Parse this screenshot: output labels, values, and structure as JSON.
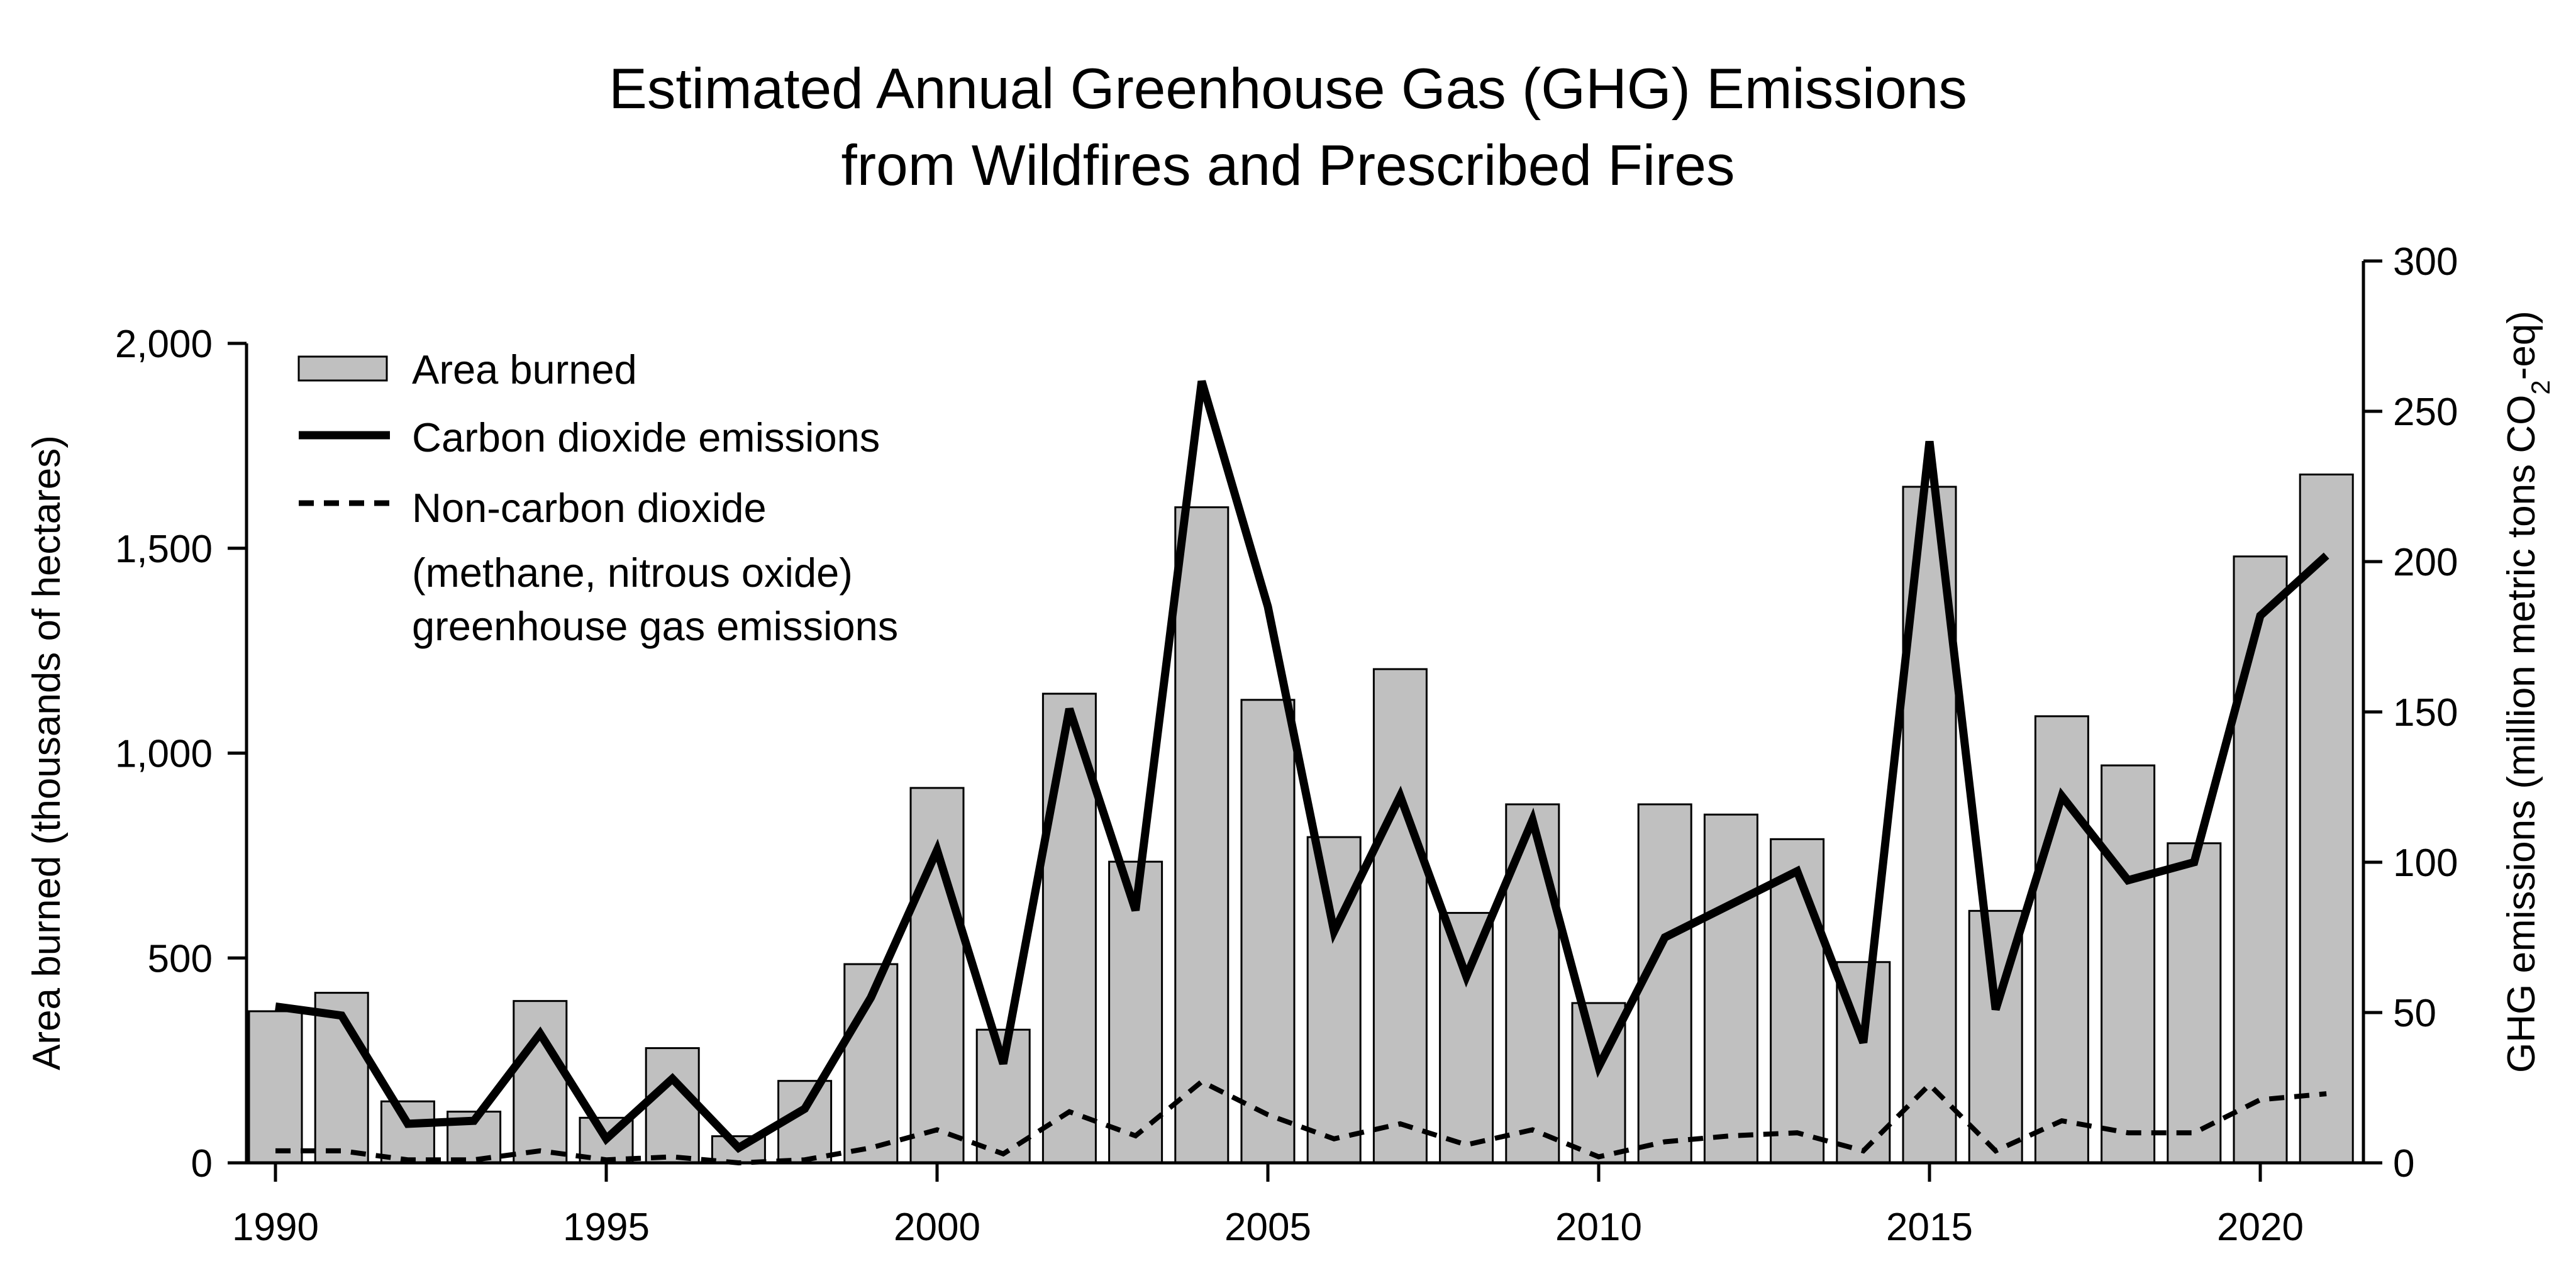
{
  "chart_data": {
    "type": "bar",
    "title": [
      "Estimated Annual Greenhouse Gas (GHG) Emissions",
      "from Wildfires and Prescribed Fires"
    ],
    "x": [
      1990,
      1991,
      1992,
      1993,
      1994,
      1995,
      1996,
      1997,
      1998,
      1999,
      2000,
      2001,
      2002,
      2003,
      2004,
      2005,
      2006,
      2007,
      2008,
      2009,
      2010,
      2011,
      2012,
      2013,
      2014,
      2015,
      2016,
      2017,
      2018,
      2019,
      2020,
      2021
    ],
    "x_ticks": [
      "1990",
      "1995",
      "2000",
      "2005",
      "2010",
      "2015",
      "2020"
    ],
    "left_axis": {
      "label": "Area burned (thousands of hectares)",
      "range": [
        0,
        2000
      ],
      "ticks": [
        "0",
        "500",
        "1,000",
        "1,500",
        "2,000"
      ]
    },
    "right_axis": {
      "label_prefix": "GHG emissions (million metric tons CO",
      "label_subscript": "2",
      "label_suffix": "-eq)",
      "range": [
        0,
        300
      ],
      "ticks": [
        "0",
        "50",
        "100",
        "150",
        "200",
        "250",
        "300"
      ]
    },
    "series": [
      {
        "name": "Area burned",
        "type": "bar",
        "axis": "left",
        "color": "#c0c0c0",
        "values": [
          370,
          415,
          150,
          125,
          395,
          110,
          280,
          65,
          200,
          485,
          915,
          325,
          1145,
          735,
          1600,
          1130,
          795,
          1205,
          610,
          875,
          390,
          875,
          850,
          790,
          490,
          1650,
          615,
          1090,
          970,
          780,
          1480,
          1680
        ]
      },
      {
        "name": "Carbon dioxide emissions",
        "type": "line",
        "axis": "right",
        "style": "solid",
        "color": "#000000",
        "values": [
          52,
          49,
          13,
          14,
          43,
          8,
          28,
          5,
          18,
          55,
          104,
          33,
          151,
          84,
          260,
          185,
          77,
          122,
          62,
          114,
          32,
          75,
          86,
          97,
          40,
          240,
          51,
          122,
          94,
          100,
          182,
          202
        ]
      },
      {
        "name_lines": [
          "Non-carbon dioxide",
          "(methane, nitrous oxide)",
          "greenhouse gas emissions"
        ],
        "type": "line",
        "axis": "right",
        "style": "dashed",
        "color": "#000000",
        "values": [
          4,
          4,
          1,
          1,
          4,
          1,
          2,
          0,
          1,
          5,
          11,
          3,
          17,
          9,
          27,
          16,
          8,
          13,
          6,
          11,
          2,
          7,
          9,
          10,
          4,
          26,
          4,
          14,
          10,
          10,
          21,
          23
        ]
      }
    ],
    "legend": {
      "position": "top-left"
    },
    "grid": false
  }
}
